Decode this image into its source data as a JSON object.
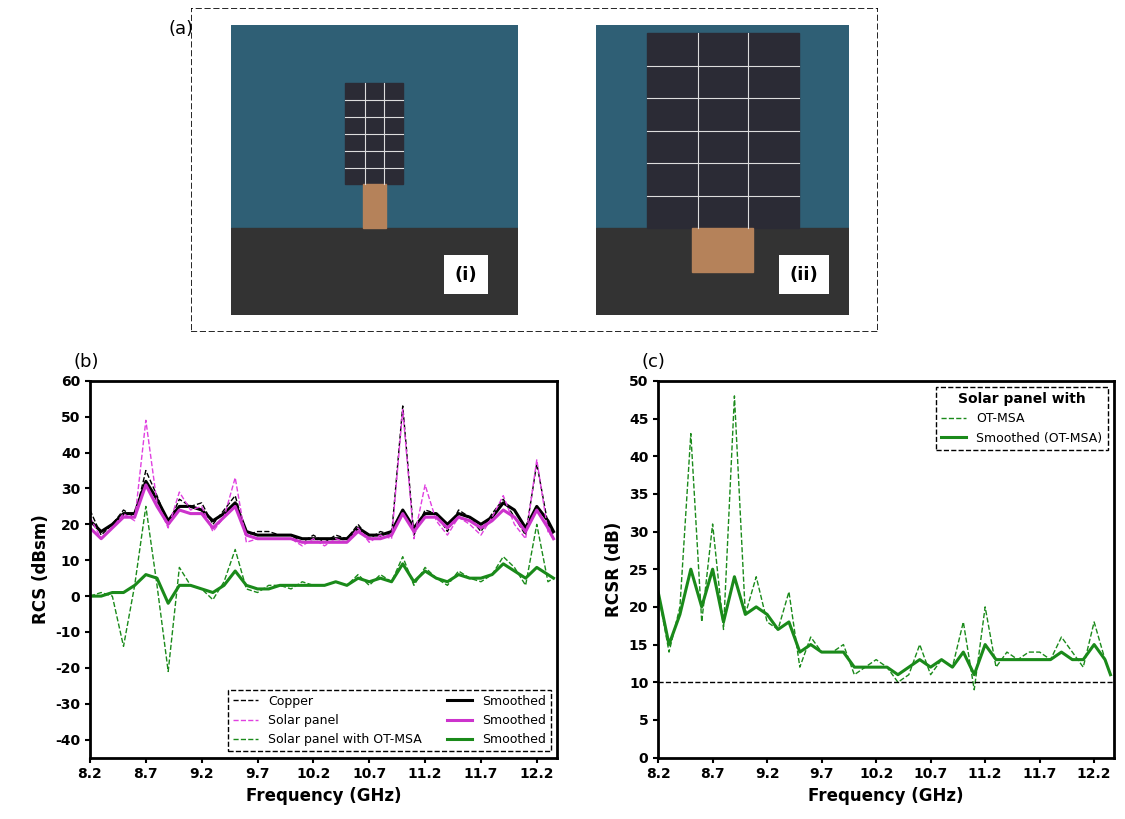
{
  "photo_panel": {
    "label": "(a)",
    "photos": [
      {
        "label": "(i)"
      },
      {
        "label": "(ii)"
      }
    ]
  },
  "chart_data": [
    {
      "type": "line",
      "panel_label": "(b)",
      "x_label": "Frequency (GHz)",
      "y_label": "RCS (dBsm)",
      "x": [
        8.2,
        8.3,
        8.4,
        8.5,
        8.6,
        8.7,
        8.8,
        8.9,
        9.0,
        9.1,
        9.2,
        9.3,
        9.4,
        9.5,
        9.6,
        9.7,
        9.8,
        9.9,
        10.0,
        10.1,
        10.2,
        10.3,
        10.4,
        10.5,
        10.6,
        10.7,
        10.8,
        10.9,
        11.0,
        11.1,
        11.2,
        11.3,
        11.4,
        11.5,
        11.6,
        11.7,
        11.8,
        11.9,
        12.0,
        12.1,
        12.2,
        12.3,
        12.35
      ],
      "xlim": [
        8.2,
        12.38
      ],
      "xticks": [
        8.2,
        8.7,
        9.2,
        9.7,
        10.2,
        10.7,
        11.2,
        11.7,
        12.2
      ],
      "ylim": [
        -45,
        60
      ],
      "yticks": [
        -40,
        -30,
        -20,
        -10,
        0,
        10,
        20,
        30,
        40,
        50,
        60
      ],
      "legend": "lower right",
      "series": [
        {
          "name": "Copper",
          "color": "#000000",
          "line_style": "dashed",
          "values": [
            24,
            17,
            20,
            24,
            22,
            35,
            28,
            20,
            27,
            25,
            26,
            20,
            24,
            28,
            17,
            18,
            18,
            17,
            17,
            15,
            17,
            15,
            17,
            16,
            20,
            16,
            18,
            17,
            53,
            17,
            24,
            23,
            18,
            24,
            22,
            18,
            23,
            27,
            22,
            17,
            37,
            20,
            17
          ]
        },
        {
          "name": "Smoothed",
          "color": "#000000",
          "line_style": "solid",
          "values": [
            21,
            18,
            20,
            23,
            23,
            32,
            27,
            21,
            25,
            25,
            24,
            21,
            23,
            26,
            18,
            17,
            17,
            17,
            17,
            16,
            16,
            16,
            16,
            16,
            19,
            17,
            17,
            18,
            24,
            19,
            23,
            23,
            20,
            23,
            22,
            20,
            22,
            26,
            24,
            19,
            25,
            21,
            18
          ]
        },
        {
          "name": "Solar panel",
          "color": "#e040e0",
          "line_style": "dashed",
          "values": [
            22,
            16,
            19,
            23,
            21,
            49,
            26,
            19,
            29,
            24,
            25,
            18,
            22,
            33,
            15,
            16,
            16,
            16,
            16,
            14,
            16,
            14,
            16,
            15,
            19,
            15,
            17,
            16,
            52,
            16,
            31,
            21,
            17,
            22,
            20,
            17,
            22,
            28,
            20,
            16,
            38,
            18,
            16
          ]
        },
        {
          "name": "Smoothed",
          "color": "#cc33cc",
          "line_style": "solid",
          "values": [
            19,
            16,
            19,
            22,
            22,
            31,
            25,
            20,
            24,
            23,
            23,
            19,
            22,
            25,
            17,
            16,
            16,
            16,
            16,
            15,
            15,
            15,
            15,
            15,
            18,
            16,
            16,
            17,
            23,
            18,
            22,
            22,
            19,
            22,
            21,
            19,
            21,
            24,
            22,
            18,
            24,
            19,
            16
          ]
        },
        {
          "name": "Solar panel with OT-MSA",
          "color": "#1a8a1a",
          "line_style": "dashed",
          "values": [
            0,
            1,
            0,
            -14,
            3,
            25,
            3,
            -21,
            8,
            3,
            2,
            -1,
            4,
            13,
            2,
            1,
            3,
            3,
            2,
            4,
            3,
            3,
            4,
            3,
            6,
            3,
            6,
            4,
            11,
            3,
            8,
            5,
            3,
            7,
            5,
            4,
            6,
            11,
            8,
            3,
            20,
            4,
            5
          ]
        },
        {
          "name": "Smoothed",
          "color": "#1a8a1a",
          "line_style": "solid",
          "values": [
            0,
            0,
            1,
            1,
            3,
            6,
            5,
            -2,
            3,
            3,
            2,
            1,
            3,
            7,
            3,
            2,
            2,
            3,
            3,
            3,
            3,
            3,
            4,
            3,
            5,
            4,
            5,
            4,
            9,
            4,
            7,
            5,
            4,
            6,
            5,
            5,
            6,
            9,
            7,
            5,
            8,
            6,
            5
          ]
        }
      ]
    },
    {
      "type": "line",
      "panel_label": "(c)",
      "x_label": "Frequency (GHz)",
      "y_label": "RCSR (dB)",
      "x": [
        8.2,
        8.3,
        8.4,
        8.5,
        8.6,
        8.7,
        8.8,
        8.9,
        9.0,
        9.1,
        9.2,
        9.3,
        9.4,
        9.5,
        9.6,
        9.7,
        9.8,
        9.9,
        10.0,
        10.1,
        10.2,
        10.3,
        10.4,
        10.5,
        10.6,
        10.7,
        10.8,
        10.9,
        11.0,
        11.1,
        11.2,
        11.3,
        11.4,
        11.5,
        11.6,
        11.7,
        11.8,
        11.9,
        12.0,
        12.1,
        12.2,
        12.3,
        12.35
      ],
      "xlim": [
        8.2,
        12.38
      ],
      "xticks": [
        8.2,
        8.7,
        9.2,
        9.7,
        10.2,
        10.7,
        11.2,
        11.7,
        12.2
      ],
      "ylim": [
        0,
        50
      ],
      "yticks": [
        0,
        5,
        10,
        15,
        20,
        25,
        30,
        35,
        40,
        45,
        50
      ],
      "legend": "upper right",
      "legend_title": "Solar panel with",
      "reference_line": 10,
      "series": [
        {
          "name": "OT-MSA",
          "color": "#1a8a1a",
          "line_style": "dashed",
          "values": [
            22,
            14,
            20,
            43,
            18,
            31,
            17,
            48,
            19,
            24,
            18,
            17,
            22,
            12,
            16,
            14,
            14,
            15,
            11,
            12,
            13,
            12,
            10,
            11,
            15,
            11,
            13,
            12,
            18,
            9,
            20,
            12,
            14,
            13,
            14,
            14,
            13,
            16,
            14,
            12,
            18,
            13,
            11
          ]
        },
        {
          "name": "Smoothed (OT-MSA)",
          "color": "#1a8a1a",
          "line_style": "solid",
          "values": [
            22,
            15,
            19,
            25,
            20,
            25,
            18,
            24,
            19,
            20,
            19,
            17,
            18,
            14,
            15,
            14,
            14,
            14,
            12,
            12,
            12,
            12,
            11,
            12,
            13,
            12,
            13,
            12,
            14,
            11,
            15,
            13,
            13,
            13,
            13,
            13,
            13,
            14,
            13,
            13,
            15,
            13,
            11
          ]
        }
      ]
    }
  ]
}
